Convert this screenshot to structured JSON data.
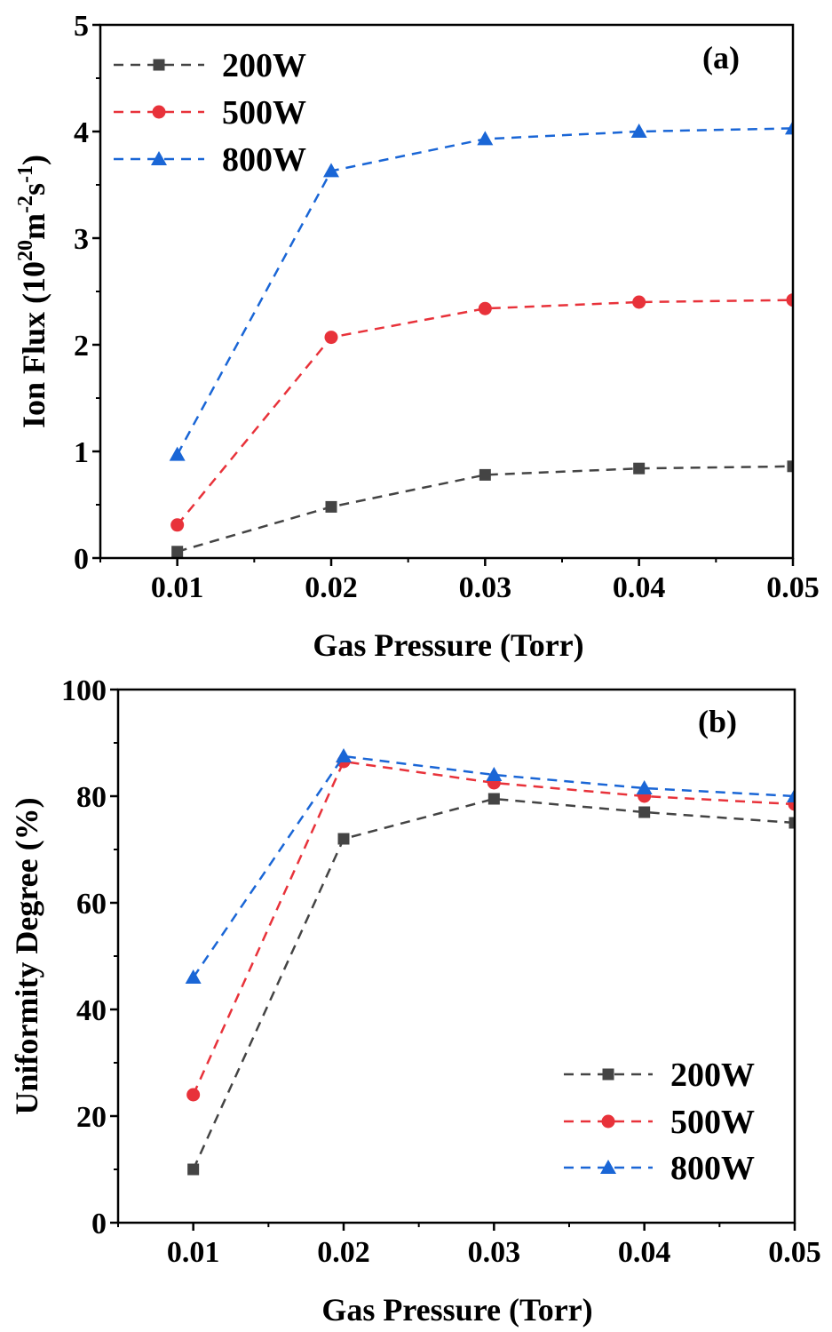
{
  "chart_data": [
    {
      "type": "line",
      "panel_label": "(a)",
      "xlabel": "Gas Pressure (Torr)",
      "ylabel": {
        "prefix": "Ion Flux (10",
        "sup1": "20",
        "mid1": "m",
        "sup2": "-2",
        "mid2": "s",
        "sup3": "-1",
        "suffix": ")"
      },
      "xlim": [
        0.005,
        0.05
      ],
      "ylim": [
        0,
        5
      ],
      "x": [
        0.01,
        0.02,
        0.03,
        0.04,
        0.05
      ],
      "xticks": [
        "0.01",
        "0.02",
        "0.03",
        "0.04",
        "0.05"
      ],
      "yticks": [
        "0",
        "1",
        "2",
        "3",
        "4",
        "5"
      ],
      "grid": false,
      "legend_position": "top-left",
      "series": [
        {
          "name": "200W",
          "marker": "square",
          "color": "#444444",
          "values": [
            0.06,
            0.48,
            0.78,
            0.84,
            0.86
          ]
        },
        {
          "name": "500W",
          "marker": "circle",
          "color": "#e8323a",
          "values": [
            0.31,
            2.07,
            2.34,
            2.4,
            2.42
          ]
        },
        {
          "name": "800W",
          "marker": "triangle",
          "color": "#1a66d6",
          "values": [
            0.97,
            3.63,
            3.93,
            4.0,
            4.03
          ]
        }
      ]
    },
    {
      "type": "line",
      "panel_label": "(b)",
      "xlabel": "Gas Pressure (Torr)",
      "ylabel": {
        "prefix": "Uniformity Degree (%)"
      },
      "xlim": [
        0.005,
        0.05
      ],
      "ylim": [
        0,
        100
      ],
      "x": [
        0.01,
        0.02,
        0.03,
        0.04,
        0.05
      ],
      "xticks": [
        "0.01",
        "0.02",
        "0.03",
        "0.04",
        "0.05"
      ],
      "yticks": [
        "0",
        "20",
        "40",
        "60",
        "80",
        "100"
      ],
      "grid": false,
      "legend_position": "bottom-right",
      "series": [
        {
          "name": "200W",
          "marker": "square",
          "color": "#444444",
          "values": [
            10,
            72,
            79.5,
            77,
            75
          ]
        },
        {
          "name": "500W",
          "marker": "circle",
          "color": "#e8323a",
          "values": [
            24,
            86.5,
            82.5,
            80,
            78.5
          ]
        },
        {
          "name": "800W",
          "marker": "triangle",
          "color": "#1a66d6",
          "values": [
            46,
            87.5,
            84,
            81.5,
            80
          ]
        }
      ]
    }
  ]
}
